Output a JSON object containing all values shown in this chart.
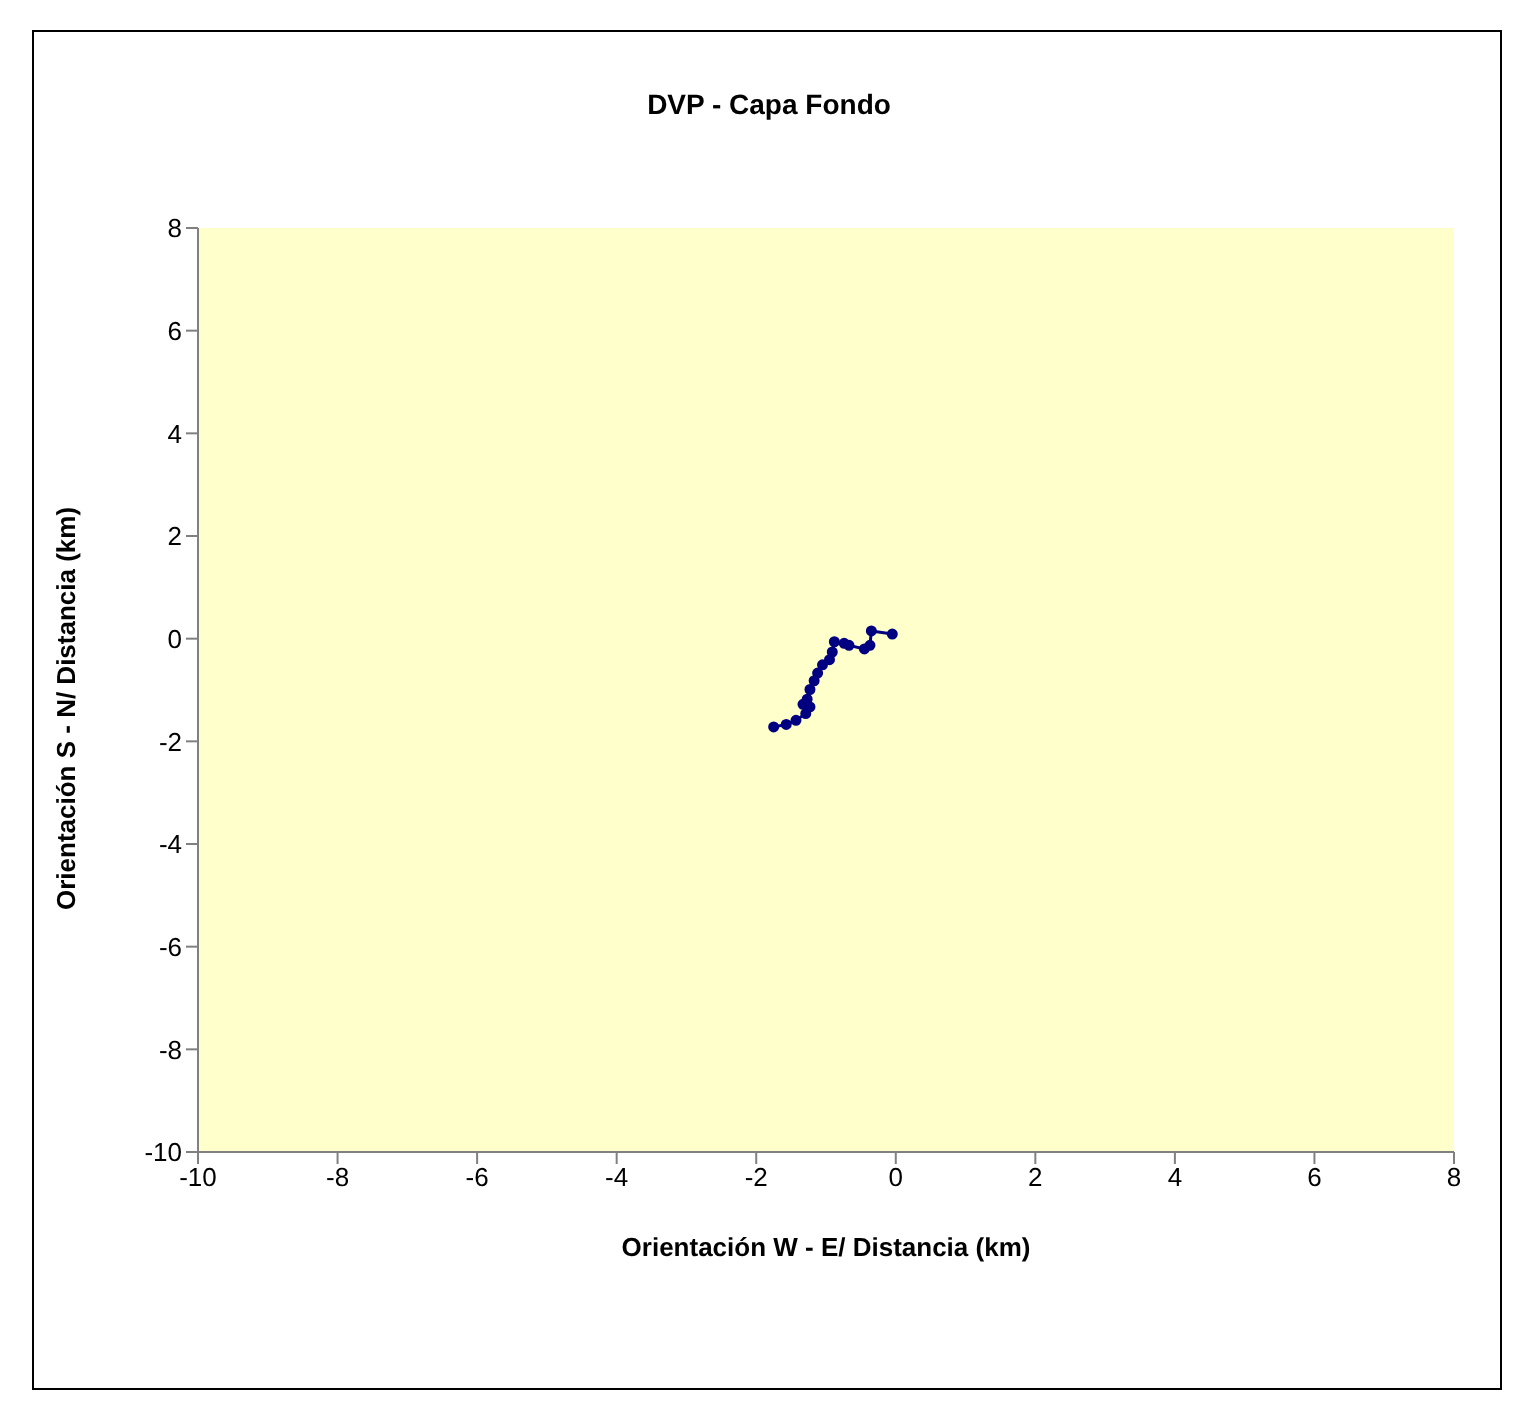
{
  "chart_data": {
    "type": "line",
    "title": "DVP - Capa  Fondo",
    "xlabel": "Orientación W - E/ Distancia (km)",
    "ylabel": "Orientación S - N/ Distancia (km)",
    "x": [
      -0.05,
      -0.35,
      -0.37,
      -0.45,
      -0.67,
      -0.74,
      -0.88,
      -0.91,
      -0.95,
      -1.05,
      -1.12,
      -1.17,
      -1.23,
      -1.27,
      -1.33,
      -1.23,
      -1.29,
      -1.43,
      -1.57,
      -1.75
    ],
    "series": [
      {
        "color": "#000080",
        "values": [
          0.09,
          0.15,
          -0.13,
          -0.2,
          -0.13,
          -0.09,
          -0.06,
          -0.26,
          -0.41,
          -0.51,
          -0.67,
          -0.82,
          -0.99,
          -1.18,
          -1.28,
          -1.33,
          -1.46,
          -1.59,
          -1.67,
          -1.72
        ]
      }
    ],
    "xlim": [
      -10,
      8
    ],
    "xticks": [
      -10,
      -8,
      -6,
      -4,
      -2,
      0,
      2,
      4,
      6,
      8
    ],
    "ylim": [
      -10,
      8
    ],
    "yticks": [
      -10,
      -8,
      -6,
      -4,
      -2,
      0,
      2,
      4,
      6,
      8
    ],
    "grid": false,
    "legend": false,
    "marker": "circle",
    "line_style": "solid"
  }
}
